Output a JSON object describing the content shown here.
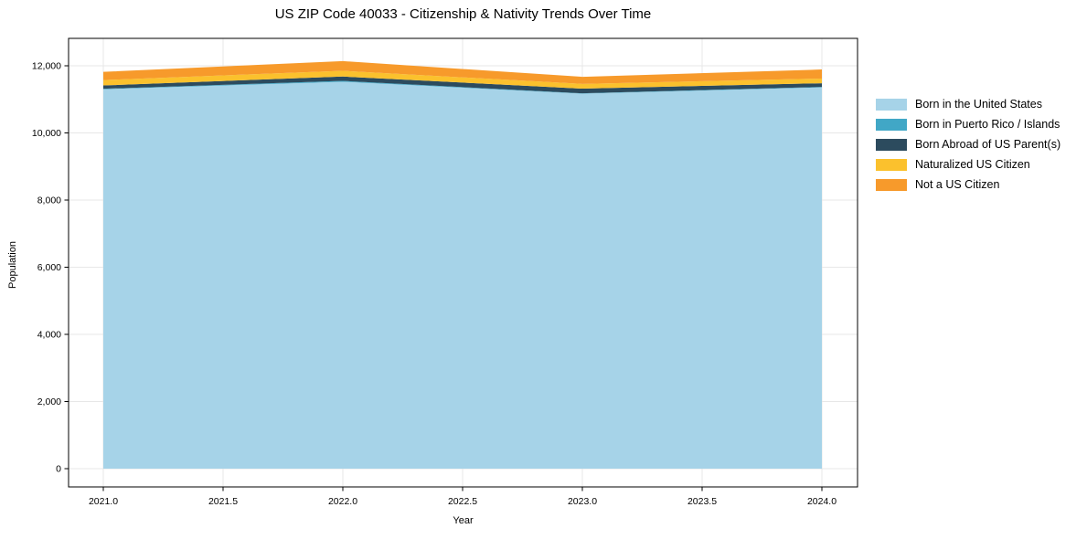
{
  "page": {
    "title": "US ZIP Code 40033 - Citizenship & Nativity Trends Over Time"
  },
  "chart_data": {
    "type": "area",
    "stacked": true,
    "title": "US ZIP Code 40033 - Citizenship & Nativity Trends Over Time",
    "xlabel": "Year",
    "ylabel": "Population",
    "x": [
      2021,
      2022,
      2023,
      2024
    ],
    "series": [
      {
        "name": "Born in the United States",
        "color": "#A6D3E8",
        "values": [
          11300,
          11525,
          11170,
          11355
        ]
      },
      {
        "name": "Born in Puerto Rico / Islands",
        "color": "#41A7C6",
        "values": [
          15,
          25,
          10,
          15
        ]
      },
      {
        "name": "Born Abroad of US Parent(s)",
        "color": "#2C4B5E",
        "values": [
          100,
          130,
          140,
          110
        ]
      },
      {
        "name": "Naturalized US Citizen",
        "color": "#FBC12D",
        "values": [
          160,
          170,
          140,
          140
        ]
      },
      {
        "name": "Not a US Citizen",
        "color": "#F79A2B",
        "values": [
          245,
          290,
          210,
          270
        ]
      }
    ],
    "xticks": [
      "2021.0",
      "2021.5",
      "2022.0",
      "2022.5",
      "2023.0",
      "2023.5",
      "2024.0"
    ],
    "yticks": [
      "0",
      "2,000",
      "4,000",
      "6,000",
      "8,000",
      "10,000",
      "12,000"
    ],
    "xlim": [
      2020.85,
      2024.15
    ],
    "ylim": [
      0,
      12750
    ],
    "grid": true,
    "legend_position": "right"
  },
  "colors": {
    "grid": "#e7e7e7",
    "spine": "#000000",
    "tick": "#000000",
    "background": "#ffffff"
  }
}
